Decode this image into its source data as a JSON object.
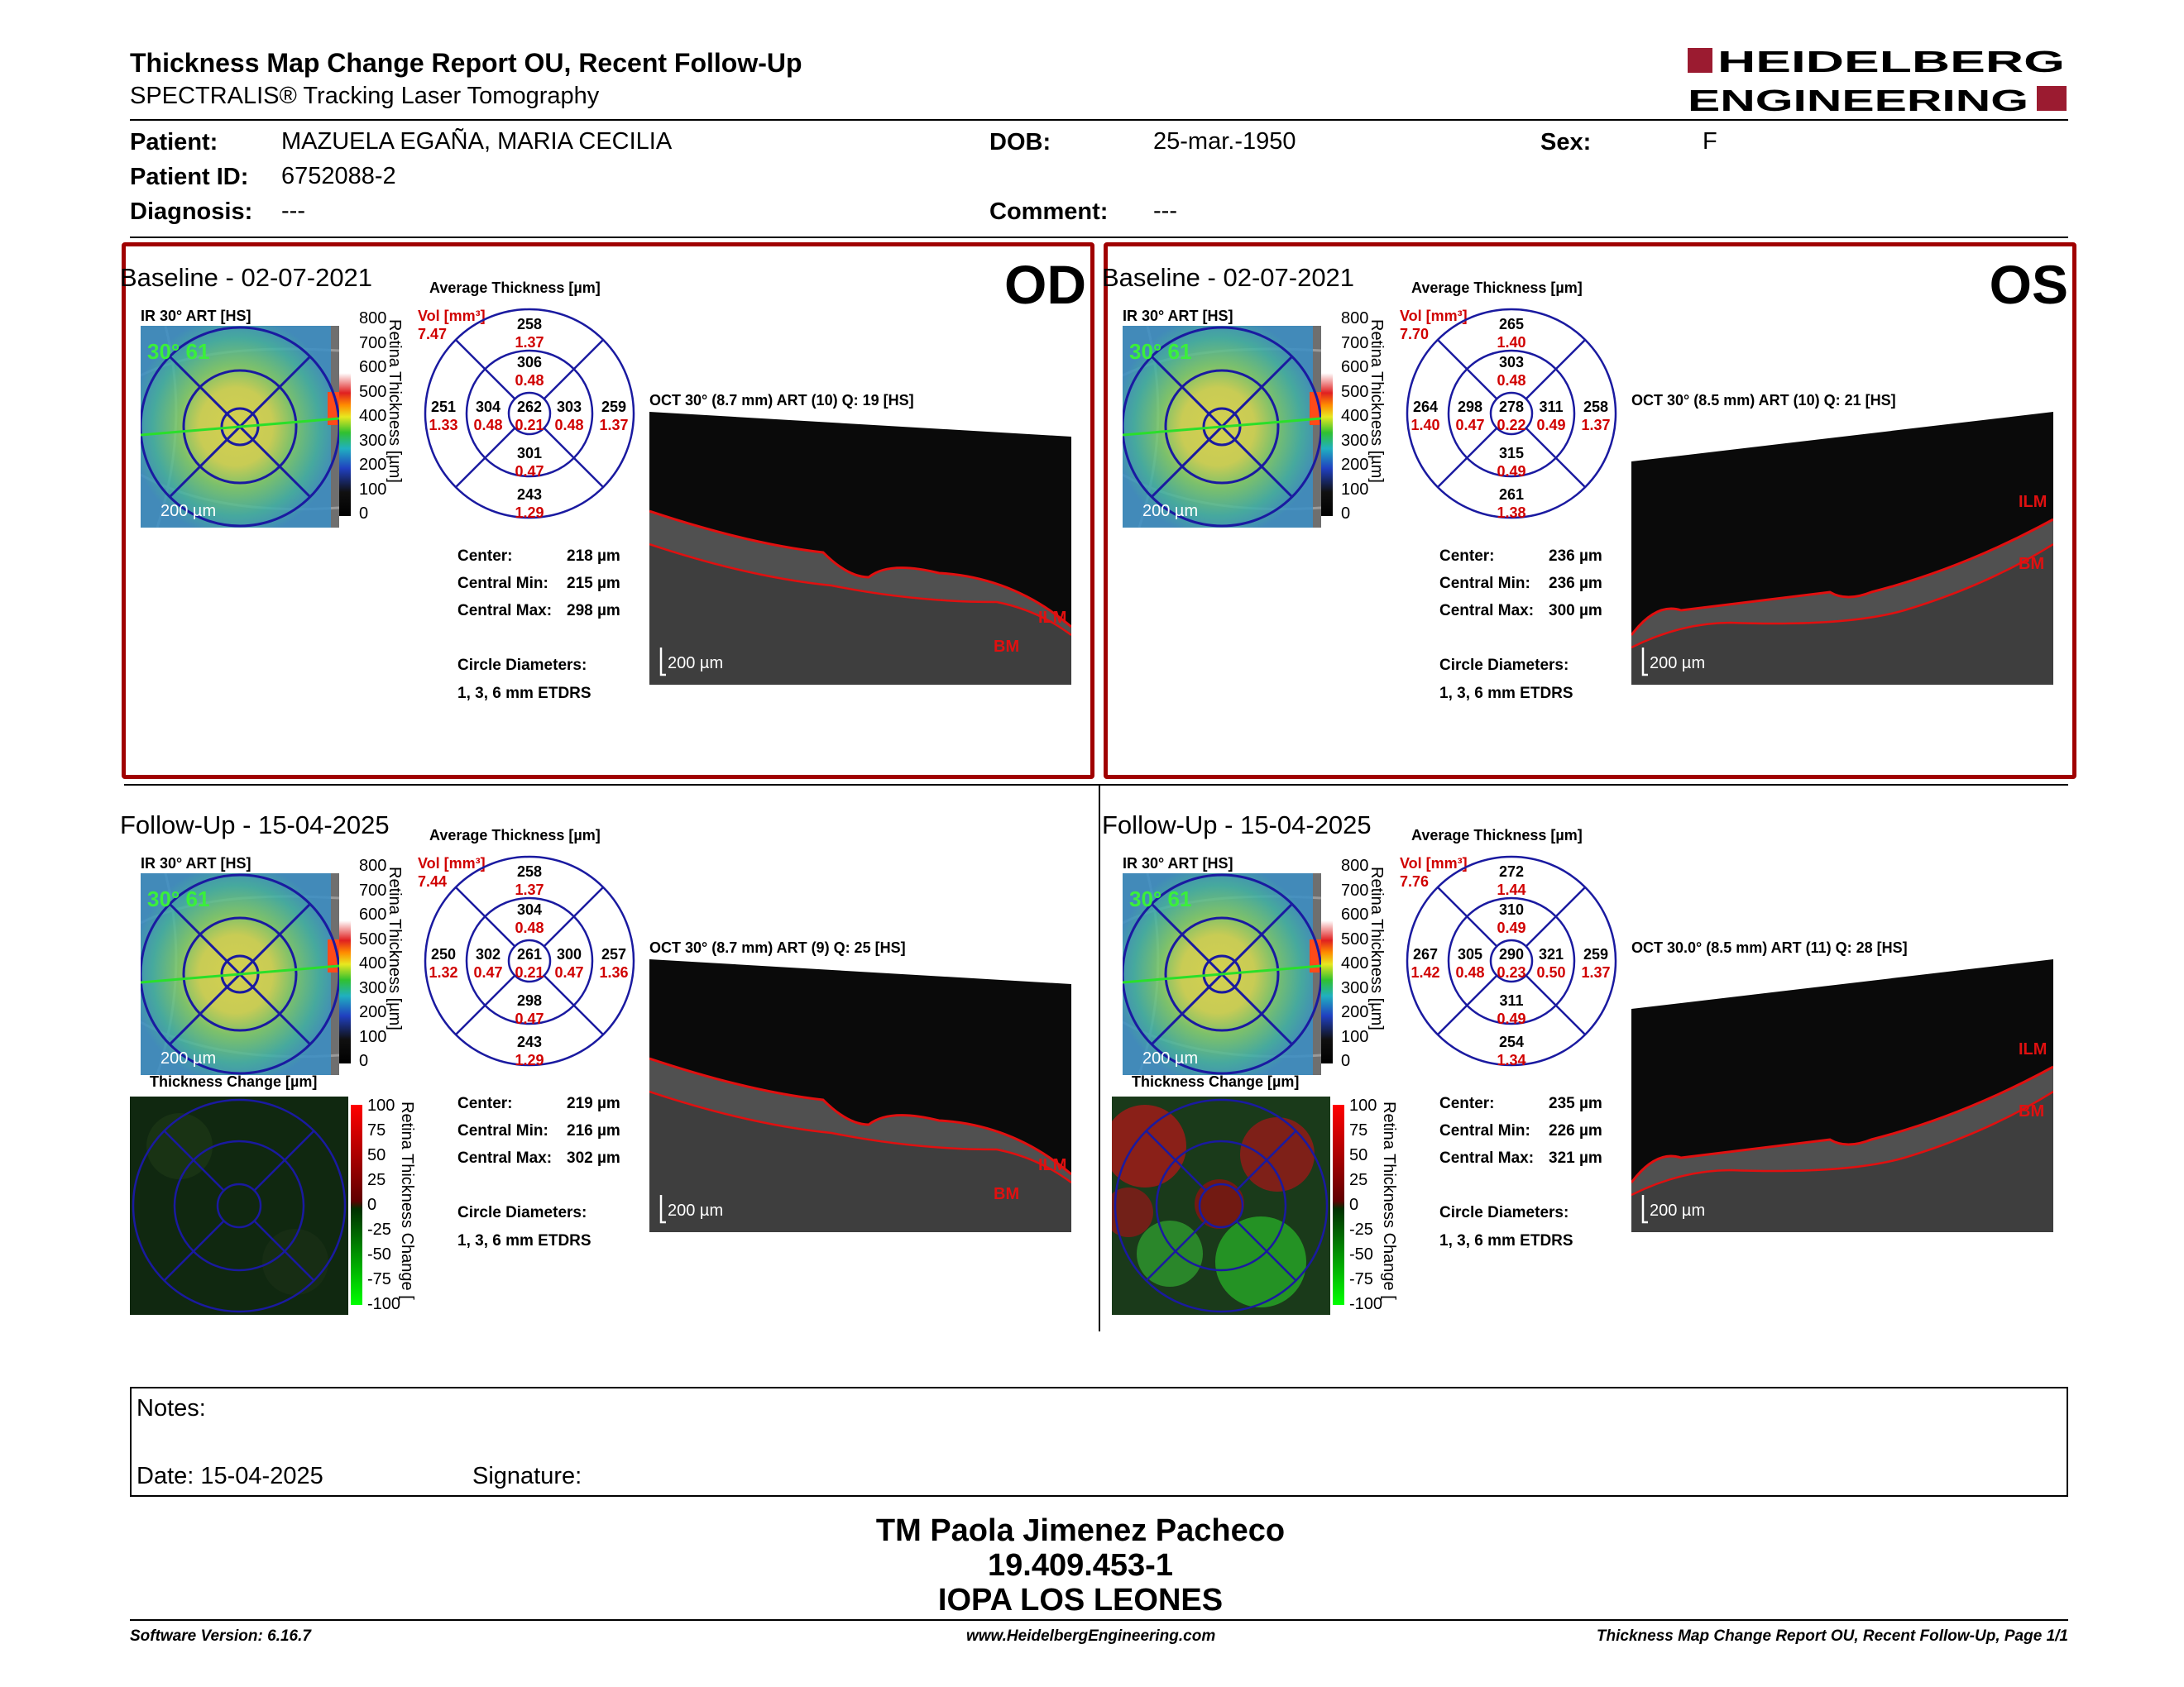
{
  "header": {
    "title": "Thickness Map Change Report OU, Recent Follow-Up",
    "subtitle": "SPECTRALIS® Tracking Laser Tomography",
    "logo_line1": "HEIDELBERG",
    "logo_line2": "ENGINEERING"
  },
  "patient": {
    "name_label": "Patient:",
    "name": "MAZUELA EGAÑA, MARIA CECILIA",
    "id_label": "Patient ID:",
    "id": "6752088-2",
    "diagnosis_label": "Diagnosis:",
    "diagnosis": "---",
    "dob_label": "DOB:",
    "dob": "25-mar.-1950",
    "sex_label": "Sex:",
    "sex": "F",
    "comment_label": "Comment:",
    "comment": "---"
  },
  "common": {
    "ir_label": "IR 30° ART [HS]",
    "avg_label": "Average Thickness [µm]",
    "vol_label": "Vol [mm³]",
    "scale_label": "200 µm",
    "colorbar_label": "Retina Thickness [µm]",
    "colorbar_ticks": [
      "800",
      "700",
      "600",
      "500",
      "400",
      "300",
      "200",
      "100",
      "0"
    ],
    "change_label": "Thickness Change [µm]",
    "change_bar_label": "Retina Thickness Change [",
    "change_ticks": [
      "100",
      "75",
      "50",
      "25",
      "0",
      "-25",
      "-50",
      "-75",
      "-100"
    ],
    "center_label": "Center:",
    "cmin_label": "Central Min:",
    "cmax_label": "Central Max:",
    "circle_label": "Circle Diameters:",
    "circle_value": "1, 3, 6 mm ETDRS",
    "ilm": "ILM",
    "bm": "BM",
    "ir_corner": "30° 61"
  },
  "quads": {
    "od_base": {
      "title": "Baseline - 02-07-2021",
      "eye": "OD",
      "oct_label": "OCT 30° (8.7 mm) ART (10) Q: 19 [HS]",
      "vol": "7.47",
      "grid": {
        "center": [
          "262",
          "0.21"
        ],
        "inner_t": [
          "306",
          "0.48"
        ],
        "inner_n": [
          "303",
          "0.48"
        ],
        "inner_i": [
          "301",
          "0.47"
        ],
        "inner_l": [
          "304",
          "0.48"
        ],
        "outer_t": [
          "258",
          "1.37"
        ],
        "outer_r": [
          "259",
          "1.37"
        ],
        "outer_b": [
          "243",
          "1.29"
        ],
        "outer_l": [
          "251",
          "1.33"
        ]
      },
      "center": "218 µm",
      "cmin": "215 µm",
      "cmax": "298 µm"
    },
    "os_base": {
      "title": "Baseline - 02-07-2021",
      "eye": "OS",
      "oct_label": "OCT 30° (8.5 mm) ART (10) Q: 21 [HS]",
      "vol": "7.70",
      "grid": {
        "center": [
          "278",
          "0.22"
        ],
        "inner_t": [
          "303",
          "0.48"
        ],
        "inner_n": [
          "311",
          "0.49"
        ],
        "inner_i": [
          "315",
          "0.49"
        ],
        "inner_l": [
          "298",
          "0.47"
        ],
        "outer_t": [
          "265",
          "1.40"
        ],
        "outer_r": [
          "258",
          "1.37"
        ],
        "outer_b": [
          "261",
          "1.38"
        ],
        "outer_l": [
          "264",
          "1.40"
        ]
      },
      "center": "236 µm",
      "cmin": "236 µm",
      "cmax": "300 µm"
    },
    "od_fu": {
      "title": "Follow-Up - 15-04-2025",
      "eye": "",
      "oct_label": "OCT 30° (8.7 mm) ART (9) Q: 25 [HS]",
      "vol": "7.44",
      "grid": {
        "center": [
          "261",
          "0.21"
        ],
        "inner_t": [
          "304",
          "0.48"
        ],
        "inner_n": [
          "300",
          "0.47"
        ],
        "inner_i": [
          "298",
          "0.47"
        ],
        "inner_l": [
          "302",
          "0.47"
        ],
        "outer_t": [
          "258",
          "1.37"
        ],
        "outer_r": [
          "257",
          "1.36"
        ],
        "outer_b": [
          "243",
          "1.29"
        ],
        "outer_l": [
          "250",
          "1.32"
        ]
      },
      "center": "219 µm",
      "cmin": "216 µm",
      "cmax": "302 µm"
    },
    "os_fu": {
      "title": "Follow-Up - 15-04-2025",
      "eye": "",
      "oct_label": "OCT 30.0° (8.5 mm) ART (11) Q: 28 [HS]",
      "vol": "7.76",
      "grid": {
        "center": [
          "290",
          "0.23"
        ],
        "inner_t": [
          "310",
          "0.49"
        ],
        "inner_n": [
          "321",
          "0.50"
        ],
        "inner_i": [
          "311",
          "0.49"
        ],
        "inner_l": [
          "305",
          "0.48"
        ],
        "outer_t": [
          "272",
          "1.44"
        ],
        "outer_r": [
          "259",
          "1.37"
        ],
        "outer_b": [
          "254",
          "1.34"
        ],
        "outer_l": [
          "267",
          "1.42"
        ]
      },
      "center": "235 µm",
      "cmin": "226 µm",
      "cmax": "321 µm"
    }
  },
  "notes": {
    "label": "Notes:",
    "date_label": "Date: 15-04-2025",
    "signature_label": "Signature:"
  },
  "signer": {
    "name": "TM Paola Jimenez Pacheco",
    "rut": "19.409.453-1",
    "clinic": "IOPA LOS LEONES"
  },
  "footer": {
    "version": "Software Version: 6.16.7",
    "url": "www.HeidelbergEngineering.com",
    "page": "Thickness Map Change Report OU, Recent Follow-Up, Page 1/1"
  },
  "colors": {
    "accent_red": "#a00000",
    "grid_blue": "#1a1aa0",
    "value_red": "#d00000"
  }
}
